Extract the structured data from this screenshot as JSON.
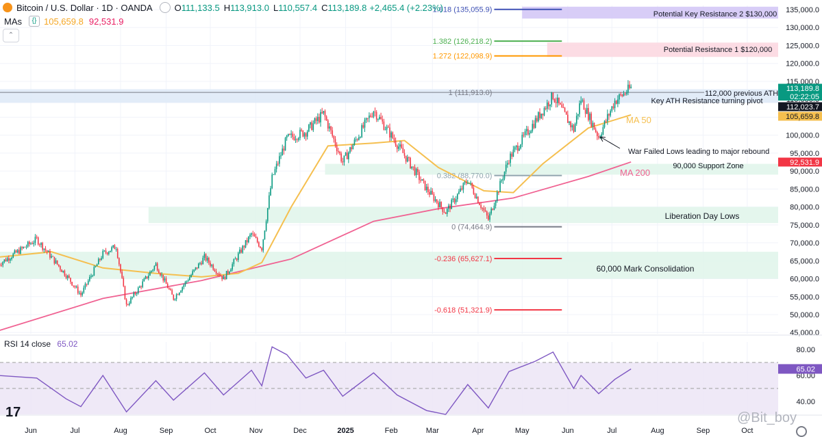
{
  "header": {
    "symbol": "Bitcoin / U.S. Dollar · 1D · OANDA",
    "o_label": "O",
    "o_value": "111,133.5",
    "h_label": "H",
    "h_value": "113,913.0",
    "l_label": "L",
    "l_value": "110,557.4",
    "c_label": "C",
    "c_value": "113,189.8",
    "change": "+2,465.4 (+2.23%)"
  },
  "mas": {
    "label": "MAs",
    "ma50_value": "105,659.8",
    "ma200_value": "92,531.9"
  },
  "rsi_header": {
    "label": "RSI 14 close",
    "value": "65.02"
  },
  "colors": {
    "up": "#089981",
    "down": "#f23645",
    "ma50": "#f5bf4f",
    "ma200": "#f06292",
    "rsi": "#7e57c2",
    "grid": "#f0f3fa"
  },
  "chart_data": {
    "type": "candlestick",
    "y_axis_ticks": [
      "135,000.0",
      "130,000.0",
      "125,000.0",
      "120,000.0",
      "115,000.0",
      "110,000.0",
      "105,000.0",
      "100,000.0",
      "95,000.0",
      "90,000.0",
      "85,000.0",
      "80,000.0",
      "75,000.0",
      "70,000.0",
      "65,000.0",
      "60,000.0",
      "55,000.0",
      "50,000.0",
      "45,000.0"
    ],
    "y_axis_values": [
      135000,
      130000,
      125000,
      120000,
      115000,
      110000,
      105000,
      100000,
      95000,
      90000,
      85000,
      80000,
      75000,
      70000,
      65000,
      60000,
      55000,
      50000,
      45000
    ],
    "ylim": [
      45000,
      137000
    ],
    "x_axis_ticks": [
      "Jun",
      "Jul",
      "Aug",
      "Sep",
      "Oct",
      "Nov",
      "Dec",
      "2025",
      "Feb",
      "Mar",
      "Apr",
      "May",
      "Jun",
      "Jul",
      "Aug",
      "Sep",
      "Oct"
    ],
    "x_axis_dates": [
      "2024-06-01",
      "2024-07-01",
      "2024-08-01",
      "2024-09-01",
      "2024-10-01",
      "2024-11-01",
      "2024-12-01",
      "2025-01-01",
      "2025-02-01",
      "2025-03-01",
      "2025-04-01",
      "2025-05-01",
      "2025-06-01",
      "2025-07-01",
      "2025-08-01",
      "2025-09-01",
      "2025-10-01"
    ],
    "price_path": [
      [
        "2024-05-10",
        64000
      ],
      [
        "2024-06-05",
        71000
      ],
      [
        "2024-06-25",
        61000
      ],
      [
        "2024-07-05",
        55500
      ],
      [
        "2024-07-20",
        67000
      ],
      [
        "2024-07-29",
        69000
      ],
      [
        "2024-08-05",
        52500
      ],
      [
        "2024-08-25",
        64000
      ],
      [
        "2024-09-06",
        54500
      ],
      [
        "2024-09-27",
        66000
      ],
      [
        "2024-10-10",
        60000
      ],
      [
        "2024-10-29",
        72500
      ],
      [
        "2024-11-05",
        68500
      ],
      [
        "2024-11-12",
        88000
      ],
      [
        "2024-11-22",
        99000
      ],
      [
        "2024-12-05",
        101000
      ],
      [
        "2024-12-17",
        106000
      ],
      [
        "2024-12-30",
        92500
      ],
      [
        "2025-01-20",
        107000
      ],
      [
        "2025-02-05",
        97500
      ],
      [
        "2025-02-25",
        85000
      ],
      [
        "2025-03-10",
        78500
      ],
      [
        "2025-03-25",
        87500
      ],
      [
        "2025-04-08",
        76500
      ],
      [
        "2025-04-22",
        93500
      ],
      [
        "2025-05-10",
        104000
      ],
      [
        "2025-05-22",
        111000
      ],
      [
        "2025-06-05",
        101500
      ],
      [
        "2025-06-10",
        110000
      ],
      [
        "2025-06-22",
        99500
      ],
      [
        "2025-07-03",
        109500
      ],
      [
        "2025-07-14",
        113189.8
      ]
    ],
    "ma50_path": [
      [
        "2024-05-10",
        66000
      ],
      [
        "2024-06-15",
        67500
      ],
      [
        "2024-07-20",
        63000
      ],
      [
        "2024-08-25",
        61500
      ],
      [
        "2024-09-25",
        60500
      ],
      [
        "2024-10-20",
        61500
      ],
      [
        "2024-11-05",
        64500
      ],
      [
        "2024-11-25",
        80000
      ],
      [
        "2024-12-20",
        97000
      ],
      [
        "2025-01-20",
        97800
      ],
      [
        "2025-02-10",
        98500
      ],
      [
        "2025-03-05",
        91000
      ],
      [
        "2025-04-05",
        84500
      ],
      [
        "2025-04-25",
        84000
      ],
      [
        "2025-05-15",
        92000
      ],
      [
        "2025-06-15",
        102000
      ],
      [
        "2025-07-14",
        105659.8
      ]
    ],
    "ma200_path": [
      [
        "2024-05-10",
        45500
      ],
      [
        "2024-07-20",
        54500
      ],
      [
        "2024-09-25",
        59500
      ],
      [
        "2024-11-25",
        65500
      ],
      [
        "2025-01-20",
        76000
      ],
      [
        "2025-03-05",
        79500
      ],
      [
        "2025-04-25",
        82500
      ],
      [
        "2025-06-15",
        88500
      ],
      [
        "2025-07-14",
        92531.9
      ]
    ],
    "fib_levels": [
      {
        "label": "1.618 (135,055.9)",
        "price": 135055.9,
        "color": "#3f51b5"
      },
      {
        "label": "1.382 (126,218.2)",
        "price": 126218.2,
        "color": "#4caf50"
      },
      {
        "label": "1.272 (122,098.9)",
        "price": 122098.9,
        "color": "#ff9800"
      },
      {
        "label": "1 (111,913.0)",
        "price": 111913.0,
        "color": "#787b86"
      },
      {
        "label": "0.382 (88,770.0)",
        "price": 88770.0,
        "color": "#90a4ae"
      },
      {
        "label": "0 (74,464.9)",
        "price": 74464.9,
        "color": "#787b86"
      },
      {
        "label": "-0.236 (65,627.1)",
        "price": 65627.1,
        "color": "#f23645"
      },
      {
        "label": "-0.618 (51,321.9)",
        "price": 51321.9,
        "color": "#f23645"
      }
    ],
    "zones": [
      {
        "label": "Potential Key Resistance 2 $130,000",
        "from": 132500,
        "to": 135800,
        "start": "2025-05-01",
        "color": "#d1c4f6"
      },
      {
        "label": "Potential Resistance 1 $120,000",
        "from": 121800,
        "to": 125800,
        "start": "2025-05-18",
        "color": "#fcd6df"
      },
      {
        "label": "Key ATH Resistance turning pivot",
        "from": 109000,
        "to": 112800,
        "start": "2024-05-10",
        "color": "#dde9f7"
      },
      {
        "label": "90,000 Support Zone",
        "from": 89000,
        "to": 92000,
        "start": "2024-12-18",
        "color": "#dff5ea"
      },
      {
        "label": "Liberation Day Lows",
        "from": 75500,
        "to": 80000,
        "start": "2024-08-20",
        "color": "#dff5ea"
      },
      {
        "label": "60,000 Mark Consolidation",
        "from": 60000,
        "to": 67500,
        "start": "2024-05-10",
        "color": "#dff5ea"
      }
    ],
    "annotations": {
      "previous_ath": "112,000 previous ATH",
      "ma50_label": "MA 50",
      "ma200_label": "MA 200",
      "war_lows": "War Failed Lows leading to major rebound"
    },
    "price_tags": [
      {
        "text": "113,189.8",
        "bg": "#089981"
      },
      {
        "text": "02:22:05",
        "bg": "#089981"
      },
      {
        "text": "112,023.7",
        "bg": "#131722"
      },
      {
        "text": "105,659.8",
        "bg": "#f5bf4f"
      },
      {
        "text": "92,531.9",
        "bg": "#f23645"
      }
    ],
    "rsi": {
      "ticks": [
        "80.00",
        "60.00",
        "40.00"
      ],
      "tick_values": [
        80,
        60,
        40
      ],
      "ylim": [
        30,
        84
      ],
      "upper": 70,
      "middle": 50,
      "lower": 30,
      "value_tag": "65.02",
      "path": [
        [
          "2024-05-10",
          60
        ],
        [
          "2024-06-05",
          58
        ],
        [
          "2024-06-25",
          42
        ],
        [
          "2024-07-05",
          36
        ],
        [
          "2024-07-20",
          60
        ],
        [
          "2024-08-05",
          32
        ],
        [
          "2024-08-25",
          56
        ],
        [
          "2024-09-06",
          41
        ],
        [
          "2024-09-27",
          62
        ],
        [
          "2024-10-10",
          45
        ],
        [
          "2024-10-29",
          64
        ],
        [
          "2024-11-05",
          52
        ],
        [
          "2024-11-12",
          82
        ],
        [
          "2024-11-22",
          76
        ],
        [
          "2024-12-05",
          58
        ],
        [
          "2024-12-17",
          64
        ],
        [
          "2024-12-30",
          44
        ],
        [
          "2025-01-20",
          62
        ],
        [
          "2025-02-05",
          45
        ],
        [
          "2025-02-25",
          33
        ],
        [
          "2025-03-10",
          30
        ],
        [
          "2025-03-25",
          53
        ],
        [
          "2025-04-08",
          35
        ],
        [
          "2025-04-22",
          63
        ],
        [
          "2025-05-10",
          71
        ],
        [
          "2025-05-22",
          78
        ],
        [
          "2025-06-05",
          50
        ],
        [
          "2025-06-10",
          60
        ],
        [
          "2025-06-22",
          46
        ],
        [
          "2025-07-03",
          57
        ],
        [
          "2025-07-14",
          65.02
        ]
      ]
    }
  },
  "watermark": "@Bit_boy",
  "logo": "17"
}
